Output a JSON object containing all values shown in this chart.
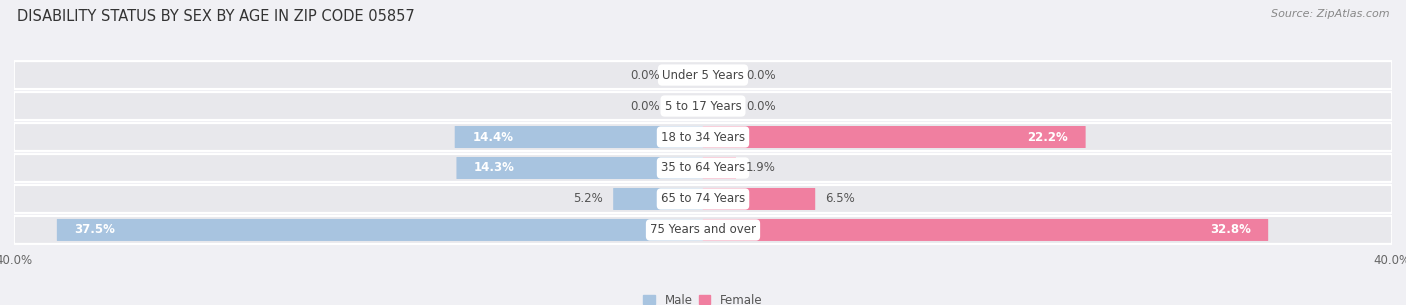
{
  "title": "DISABILITY STATUS BY SEX BY AGE IN ZIP CODE 05857",
  "source": "Source: ZipAtlas.com",
  "categories": [
    "Under 5 Years",
    "5 to 17 Years",
    "18 to 34 Years",
    "35 to 64 Years",
    "65 to 74 Years",
    "75 Years and over"
  ],
  "male_values": [
    0.0,
    0.0,
    14.4,
    14.3,
    5.2,
    37.5
  ],
  "female_values": [
    0.0,
    0.0,
    22.2,
    1.9,
    6.5,
    32.8
  ],
  "male_color": "#a8c4e0",
  "female_color": "#f07fa0",
  "male_label": "Male",
  "female_label": "Female",
  "xlim": 40.0,
  "row_bg_color": "#e8e8ec",
  "fig_bg_color": "#f0f0f4",
  "title_fontsize": 10.5,
  "source_fontsize": 8,
  "label_fontsize": 8.5,
  "axis_label_fontsize": 8.5,
  "category_fontsize": 8.5
}
